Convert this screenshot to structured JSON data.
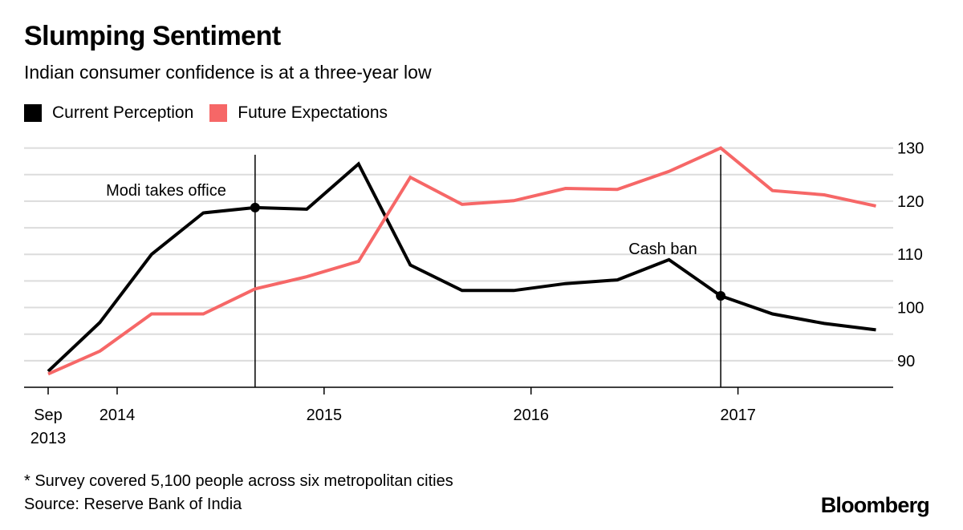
{
  "header": {
    "title": "Slumping Sentiment",
    "subtitle": "Indian consumer confidence is at a three-year low"
  },
  "footer": {
    "footnote": "* Survey covered 5,100 people across six metropolitan cities",
    "source": "Source: Reserve Bank of India",
    "brand": "Bloomberg"
  },
  "chart_data": {
    "type": "line",
    "title": "Slumping Sentiment",
    "subtitle": "Indian consumer confidence is at a three-year low",
    "xlabel": "",
    "ylabel": "",
    "x": [
      "2013-09",
      "2013-12",
      "2014-03",
      "2014-06",
      "2014-09",
      "2014-12",
      "2015-03",
      "2015-06",
      "2015-09",
      "2015-12",
      "2016-03",
      "2016-06",
      "2016-09",
      "2016-12",
      "2017-03",
      "2017-06",
      "2017-09"
    ],
    "series": [
      {
        "name": "Current Perception",
        "color": "#000000",
        "values": [
          88.0,
          97.2,
          110.0,
          117.8,
          118.8,
          118.5,
          127.0,
          108.0,
          103.2,
          103.2,
          104.5,
          105.2,
          109.0,
          102.2,
          98.8,
          97.0,
          95.8
        ]
      },
      {
        "name": "Future Expectations",
        "color": "#f66767",
        "values": [
          87.5,
          91.8,
          98.8,
          98.8,
          103.5,
          105.8,
          108.7,
          124.5,
          119.4,
          120.1,
          122.4,
          122.2,
          125.6,
          130.0,
          122.0,
          121.2,
          119.1
        ]
      }
    ],
    "ylim": [
      85,
      131
    ],
    "yticks": [
      90,
      100,
      110,
      120,
      130
    ],
    "xlim": [
      "2013-09",
      "2017-10"
    ],
    "xtick_labels": [
      {
        "at": "2013-09",
        "lines": [
          "Sep",
          "2013"
        ]
      },
      {
        "at": "2014-01",
        "lines": [
          "2014"
        ]
      },
      {
        "at": "2015-01",
        "lines": [
          "2015"
        ]
      },
      {
        "at": "2016-01",
        "lines": [
          "2016"
        ]
      },
      {
        "at": "2017-01",
        "lines": [
          "2017"
        ]
      }
    ],
    "annotations": [
      {
        "text": "Modi takes office",
        "at": "2014-09",
        "series": 0
      },
      {
        "text": "Cash ban",
        "at": "2016-12",
        "series": 0
      }
    ],
    "grid": true,
    "y_axis_side": "right",
    "legend_position": "top-left"
  }
}
